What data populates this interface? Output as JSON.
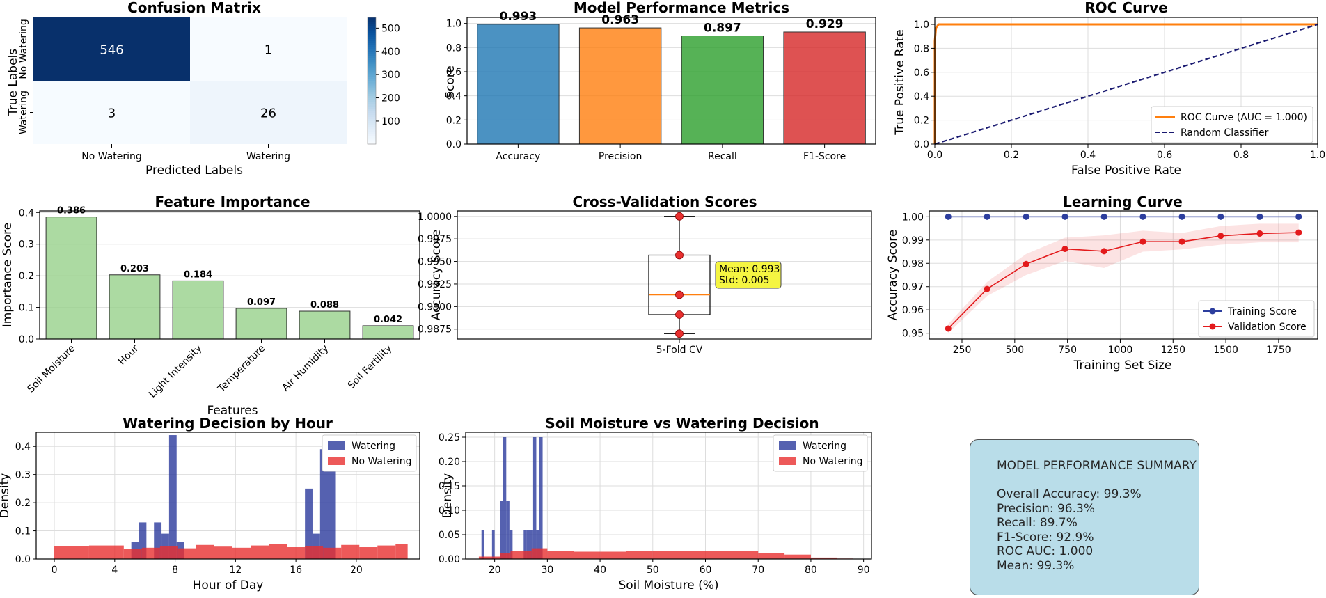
{
  "chart_data": [
    {
      "type": "heatmap",
      "title": "Confusion Matrix",
      "xlabel": "Predicted Labels",
      "ylabel": "True Labels",
      "x_categories": [
        "No Watering",
        "Watering"
      ],
      "y_categories": [
        "No Watering",
        "Watering"
      ],
      "values": [
        [
          546,
          1
        ],
        [
          3,
          26
        ]
      ],
      "colorbar_ticks": [
        100,
        200,
        300,
        400,
        500
      ],
      "colormap": "Blues"
    },
    {
      "type": "bar",
      "title": "Model Performance Metrics",
      "ylabel": "Score",
      "categories": [
        "Accuracy",
        "Precision",
        "Recall",
        "F1-Score"
      ],
      "values": [
        0.993,
        0.963,
        0.897,
        0.929
      ],
      "data_labels": [
        "0.993",
        "0.963",
        "0.897",
        "0.929"
      ],
      "colors": [
        "#1f77b4",
        "#ff7f0e",
        "#2ca02c",
        "#d62728"
      ],
      "ylim": [
        0,
        1.0
      ],
      "yticks": [
        "0.0",
        "0.2",
        "0.4",
        "0.6",
        "0.8",
        "1.0"
      ]
    },
    {
      "type": "line",
      "title": "ROC Curve",
      "xlabel": "False Positive Rate",
      "ylabel": "True Positive Rate",
      "xlim": [
        0,
        1
      ],
      "ylim": [
        0,
        1
      ],
      "xticks": [
        "0.0",
        "0.2",
        "0.4",
        "0.6",
        "0.8",
        "1.0"
      ],
      "yticks": [
        "0.0",
        "0.2",
        "0.4",
        "0.6",
        "0.8",
        "1.0"
      ],
      "series": [
        {
          "name": "ROC Curve (AUC = 1.000)",
          "x": [
            0,
            0.0,
            0.003,
            0.01,
            1.0
          ],
          "y": [
            0,
            0.86,
            0.97,
            1.0,
            1.0
          ],
          "color": "#ff7f0e"
        },
        {
          "name": "Random Classifier",
          "x": [
            0,
            1
          ],
          "y": [
            0,
            1
          ],
          "color": "#191970",
          "dash": true
        }
      ],
      "legend": "lower-right"
    },
    {
      "type": "bar",
      "title": "Feature Importance",
      "xlabel": "Features",
      "ylabel": "Importance Score",
      "categories": [
        "Soil Moisture",
        "Hour",
        "Light Intensity",
        "Temperature",
        "Air Humidity",
        "Soil Fertility"
      ],
      "values": [
        0.386,
        0.203,
        0.184,
        0.097,
        0.088,
        0.042
      ],
      "data_labels": [
        "0.386",
        "0.203",
        "0.184",
        "0.097",
        "0.088",
        "0.042"
      ],
      "color": "#98d18b",
      "ylim": [
        0,
        0.4
      ],
      "yticks": [
        "0.0",
        "0.1",
        "0.2",
        "0.3",
        "0.4"
      ]
    },
    {
      "type": "box",
      "title": "Cross-Validation Scores",
      "ylabel": "Accuracy Score",
      "category": "5-Fold CV",
      "points": [
        1.0,
        0.9957,
        0.9913,
        0.9891,
        0.987
      ],
      "box": {
        "min": 0.987,
        "q1": 0.9891,
        "median": 0.9913,
        "q3": 0.9957,
        "max": 1.0
      },
      "annotation": [
        "Mean: 0.993",
        "Std: 0.005"
      ],
      "ylim": [
        0.9864,
        1.0006
      ],
      "yticks": [
        "0.9875",
        "0.9900",
        "0.9925",
        "0.9950",
        "0.9975",
        "1.0000"
      ]
    },
    {
      "type": "line",
      "title": "Learning Curve",
      "xlabel": "Training Set Size",
      "ylabel": "Accuracy Score",
      "x": [
        185,
        369,
        554,
        738,
        923,
        1107,
        1292,
        1476,
        1661,
        1845
      ],
      "series": [
        {
          "name": "Training Score",
          "values": [
            1.0,
            1.0,
            1.0,
            1.0,
            1.0,
            1.0,
            1.0,
            1.0,
            1.0,
            1.0
          ],
          "color": "#2c3e9e"
        },
        {
          "name": "Validation Score",
          "values": [
            0.952,
            0.969,
            0.9797,
            0.9862,
            0.9852,
            0.9893,
            0.9893,
            0.9918,
            0.9928,
            0.9932
          ],
          "band_low": [
            0.95,
            0.966,
            0.975,
            0.981,
            0.978,
            0.985,
            0.986,
            0.988,
            0.989,
            0.989
          ],
          "band_high": [
            0.954,
            0.972,
            0.984,
            0.991,
            0.992,
            0.994,
            0.993,
            0.996,
            0.997,
            0.997
          ],
          "color": "#e31a1c"
        }
      ],
      "xlim": [
        95,
        1935
      ],
      "ylim": [
        0.9475,
        1.0025
      ],
      "xticks": [
        "250",
        "500",
        "750",
        "1000",
        "1250",
        "1500",
        "1750"
      ],
      "yticks": [
        "0.95",
        "0.96",
        "0.97",
        "0.98",
        "0.99",
        "1.00"
      ],
      "legend": "lower-right"
    },
    {
      "type": "histogram",
      "title": "Watering Decision by Hour",
      "xlabel": "Hour of Day",
      "ylabel": "Density",
      "xlim": [
        -1.2,
        24.2
      ],
      "ylim": [
        0,
        0.45
      ],
      "xticks": [
        "0",
        "4",
        "8",
        "12",
        "16",
        "20"
      ],
      "yticks": [
        "0.0",
        "0.1",
        "0.2",
        "0.3",
        "0.4"
      ],
      "series": [
        {
          "name": "Watering",
          "color": "#2a3a9c",
          "bins": [
            [
              5.1,
              5.6,
              0.06
            ],
            [
              5.6,
              6.1,
              0.13
            ],
            [
              6.6,
              7.1,
              0.13
            ],
            [
              7.1,
              7.6,
              0.09
            ],
            [
              7.6,
              8.1,
              0.44
            ],
            [
              8.1,
              8.6,
              0.06
            ],
            [
              16.6,
              17.1,
              0.25
            ],
            [
              17.1,
              17.6,
              0.09
            ],
            [
              17.6,
              18.6,
              0.39
            ]
          ]
        },
        {
          "name": "No Watering",
          "color": "#e8302f",
          "bins": [
            [
              0,
              2.3,
              0.045
            ],
            [
              2.3,
              4.6,
              0.048
            ],
            [
              4.6,
              5.8,
              0.035
            ],
            [
              5.8,
              7.0,
              0.04
            ],
            [
              7.0,
              8.2,
              0.045
            ],
            [
              8.2,
              9.4,
              0.038
            ],
            [
              9.4,
              10.6,
              0.05
            ],
            [
              10.6,
              11.8,
              0.044
            ],
            [
              11.8,
              13.0,
              0.04
            ],
            [
              13.0,
              14.2,
              0.048
            ],
            [
              14.2,
              15.4,
              0.052
            ],
            [
              15.4,
              16.6,
              0.042
            ],
            [
              16.6,
              17.8,
              0.046
            ],
            [
              17.8,
              19.0,
              0.04
            ],
            [
              19.0,
              20.2,
              0.05
            ],
            [
              20.2,
              21.4,
              0.042
            ],
            [
              21.4,
              22.6,
              0.048
            ],
            [
              22.6,
              23.4,
              0.052
            ]
          ]
        }
      ],
      "legend": "upper-right"
    },
    {
      "type": "histogram",
      "title": "Soil Moisture vs Watering Decision",
      "xlabel": "Soil Moisture (%)",
      "ylabel": "Density",
      "xlim": [
        14.5,
        91.5
      ],
      "ylim": [
        0,
        0.26
      ],
      "xticks": [
        "20",
        "30",
        "40",
        "50",
        "60",
        "70",
        "80",
        "90"
      ],
      "yticks": [
        "0.00",
        "0.05",
        "0.10",
        "0.15",
        "0.20",
        "0.25"
      ],
      "series": [
        {
          "name": "Watering",
          "color": "#2a3a9c",
          "bins": [
            [
              17.5,
              18.0,
              0.06
            ],
            [
              19.5,
              20.0,
              0.06
            ],
            [
              21.0,
              21.6,
              0.12
            ],
            [
              21.6,
              22.2,
              0.25
            ],
            [
              22.2,
              22.8,
              0.12
            ],
            [
              22.8,
              23.4,
              0.06
            ],
            [
              25.5,
              26.1,
              0.06
            ],
            [
              26.1,
              26.7,
              0.06
            ],
            [
              26.7,
              27.3,
              0.06
            ],
            [
              27.3,
              27.9,
              0.25
            ],
            [
              27.9,
              28.5,
              0.06
            ],
            [
              28.5,
              29.1,
              0.25
            ]
          ]
        },
        {
          "name": "No Watering",
          "color": "#e8302f",
          "bins": [
            [
              17,
              21,
              0.005
            ],
            [
              21,
              23,
              0.012
            ],
            [
              23,
              27,
              0.016
            ],
            [
              27,
              30,
              0.022
            ],
            [
              30,
              35,
              0.016
            ],
            [
              35,
              40,
              0.015
            ],
            [
              40,
              45,
              0.015
            ],
            [
              45,
              50,
              0.016
            ],
            [
              50,
              55,
              0.017
            ],
            [
              55,
              60,
              0.016
            ],
            [
              60,
              65,
              0.016
            ],
            [
              65,
              70,
              0.016
            ],
            [
              70,
              75,
              0.012
            ],
            [
              75,
              80,
              0.009
            ],
            [
              80,
              85,
              0.003
            ],
            [
              85,
              88,
              0.001
            ]
          ]
        }
      ],
      "legend": "upper-right"
    }
  ],
  "summary": {
    "title": "MODEL PERFORMANCE SUMMARY",
    "lines": [
      "Overall Accuracy: 99.3%",
      "Precision: 96.3%",
      "Recall: 89.7%",
      "F1-Score: 92.9%",
      "ROC AUC: 1.000",
      "Mean: 99.3%"
    ]
  }
}
